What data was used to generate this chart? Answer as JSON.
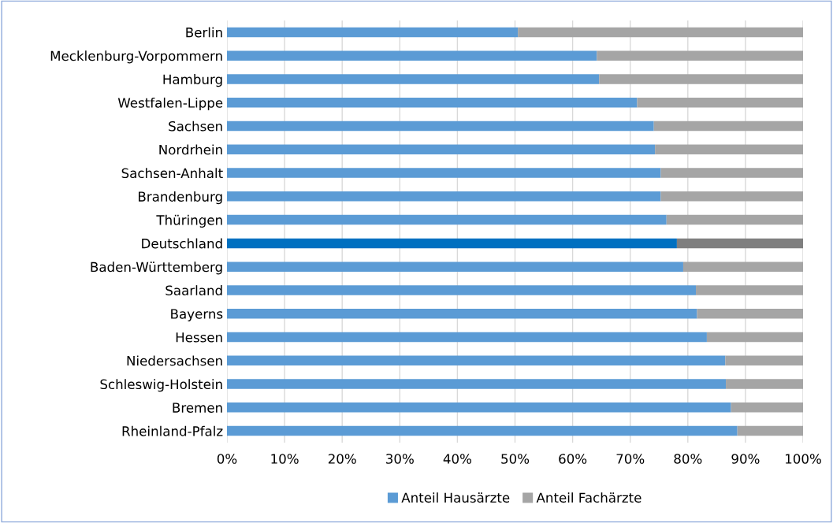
{
  "chart_data": {
    "type": "bar",
    "orientation": "horizontal",
    "stacked": true,
    "categories": [
      "Berlin",
      "Mecklenburg-Vorpommern",
      "Hamburg",
      "Westfalen-Lippe",
      "Sachsen",
      "Nordrhein",
      "Sachsen-Anhalt",
      "Brandenburg",
      "Thüringen",
      "Deutschland",
      "Baden-Württemberg",
      "Saarland",
      "Bayerns",
      "Hessen",
      "Niedersachsen",
      "Schleswig-Holstein",
      "Bremen",
      "Rheinland-Pfalz"
    ],
    "series": [
      {
        "name": "Anteil Hausärzte",
        "color": "#5b9bd5",
        "colors": [
          "#5b9bd5",
          "#5b9bd5",
          "#5b9bd5",
          "#5b9bd5",
          "#5b9bd5",
          "#5b9bd5",
          "#5b9bd5",
          "#5b9bd5",
          "#5b9bd5",
          "#0070c0",
          "#5b9bd5",
          "#5b9bd5",
          "#5b9bd5",
          "#5b9bd5",
          "#5b9bd5",
          "#5b9bd5",
          "#5b9bd5",
          "#5b9bd5"
        ],
        "values": [
          50.5,
          64.2,
          64.6,
          71.2,
          74.1,
          74.3,
          75.3,
          75.3,
          76.3,
          78.1,
          79.2,
          81.4,
          81.6,
          83.3,
          86.5,
          86.6,
          87.5,
          88.6
        ]
      },
      {
        "name": "Anteil Fachärzte",
        "color": "#a5a5a5",
        "colors": [
          "#a5a5a5",
          "#a5a5a5",
          "#a5a5a5",
          "#a5a5a5",
          "#a5a5a5",
          "#a5a5a5",
          "#a5a5a5",
          "#a5a5a5",
          "#a5a5a5",
          "#7f7f7f",
          "#a5a5a5",
          "#a5a5a5",
          "#a5a5a5",
          "#a5a5a5",
          "#a5a5a5",
          "#a5a5a5",
          "#a5a5a5",
          "#a5a5a5"
        ],
        "values": [
          49.5,
          35.8,
          35.4,
          28.8,
          25.9,
          25.7,
          24.7,
          24.7,
          23.7,
          21.9,
          20.8,
          18.6,
          18.4,
          16.7,
          13.5,
          13.4,
          12.5,
          11.4
        ]
      }
    ],
    "xlim": [
      0,
      100
    ],
    "xticks": [
      {
        "value": 0,
        "label": "0%"
      },
      {
        "value": 10,
        "label": "10%"
      },
      {
        "value": 20,
        "label": "20%"
      },
      {
        "value": 30,
        "label": "30%"
      },
      {
        "value": 40,
        "label": "40%"
      },
      {
        "value": 50,
        "label": "50%"
      },
      {
        "value": 60,
        "label": "60%"
      },
      {
        "value": 70,
        "label": "70%"
      },
      {
        "value": 80,
        "label": "80%"
      },
      {
        "value": 90,
        "label": "90%"
      },
      {
        "value": 100,
        "label": "100%"
      }
    ],
    "grid": "x",
    "legend": "bottom"
  }
}
